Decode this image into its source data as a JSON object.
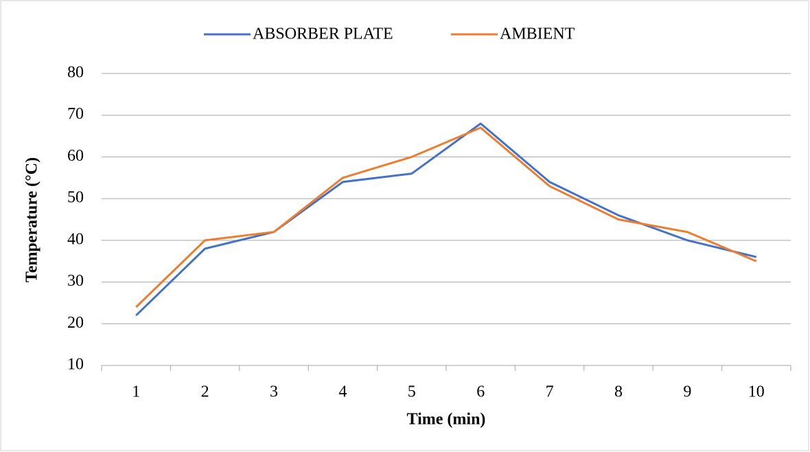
{
  "chart_data": {
    "type": "line",
    "x_label": "Time (min)",
    "y_label": "Temperature (°C)",
    "categories": [
      "1",
      "2",
      "3",
      "4",
      "5",
      "6",
      "7",
      "8",
      "9",
      "10"
    ],
    "series": [
      {
        "name": "ABSORBER PLATE",
        "color": "#4472c4",
        "values": [
          22,
          38,
          42,
          54,
          56,
          68,
          54,
          46,
          40,
          36
        ]
      },
      {
        "name": "AMBIENT",
        "color": "#ed7d31",
        "values": [
          24,
          40,
          42,
          55,
          60,
          67,
          53,
          45,
          42,
          35
        ]
      }
    ],
    "ylim": [
      10,
      80
    ],
    "yticks": [
      10,
      20,
      30,
      40,
      50,
      60,
      70,
      80
    ],
    "grid": true,
    "legend": "top"
  }
}
